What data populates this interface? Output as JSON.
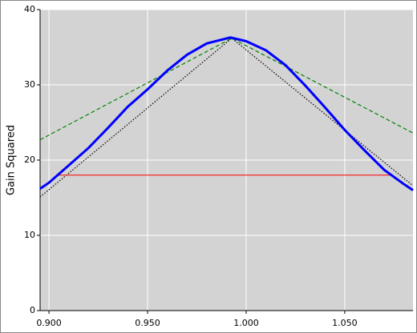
{
  "chart_data": {
    "type": "line",
    "ylabel": "Gain Squared",
    "xlim": [
      0.8955,
      1.0846
    ],
    "ylim": [
      0,
      40
    ],
    "xticks": [
      {
        "value": 0.9,
        "label": "0.900"
      },
      {
        "value": 0.95,
        "label": "0.950"
      },
      {
        "value": 1.0,
        "label": "1.000"
      },
      {
        "value": 1.05,
        "label": "1.050"
      }
    ],
    "yticks": [
      0,
      10,
      20,
      30,
      40
    ],
    "grid": true,
    "series": [
      {
        "color": "#0000ff",
        "width": 3,
        "dash": "none",
        "x": [
          0.8955,
          0.9,
          0.91,
          0.92,
          0.93,
          0.94,
          0.95,
          0.96,
          0.97,
          0.98,
          0.992,
          1.0,
          1.01,
          1.02,
          1.03,
          1.04,
          1.05,
          1.06,
          1.07,
          1.08,
          1.0846
        ],
        "values": [
          16.2,
          17.0,
          19.3,
          21.6,
          24.3,
          27.1,
          29.4,
          31.9,
          34.0,
          35.5,
          36.3,
          35.8,
          34.6,
          32.6,
          29.9,
          27.0,
          24.0,
          21.3,
          18.7,
          16.8,
          16.0
        ]
      },
      {
        "color": "#ff0000",
        "width": 1,
        "dash": "none",
        "x": [
          0.9037,
          1.0744
        ],
        "values": [
          18.0,
          18.0
        ]
      },
      {
        "color": "#008000",
        "width": 1.2,
        "dash": "5,3",
        "x": [
          0.8955,
          0.9927,
          1.0846
        ],
        "values": [
          22.7,
          36.2,
          23.6
        ]
      },
      {
        "color": "#000000",
        "width": 1.2,
        "dash": "1.5,2",
        "x": [
          0.8955,
          0.9927,
          1.0846
        ],
        "values": [
          15.1,
          36.2,
          16.6
        ]
      }
    ]
  }
}
